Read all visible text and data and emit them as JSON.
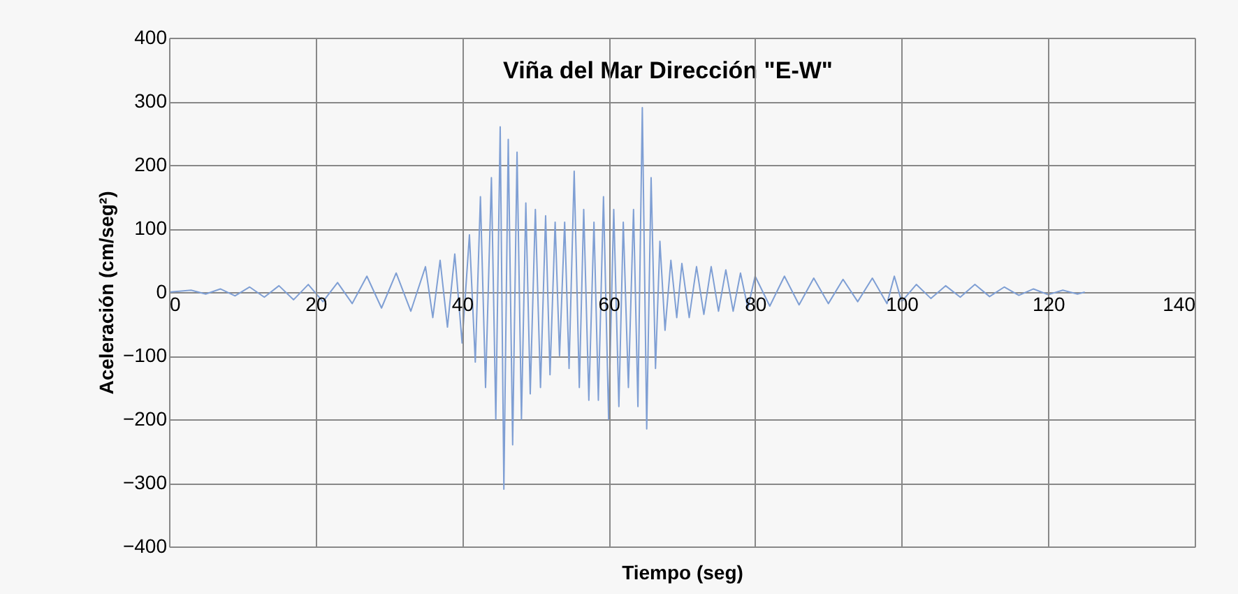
{
  "chart_data": {
    "type": "line",
    "title": "Viña del Mar Dirección \"E-W\"",
    "xlabel": "Tiempo (seg)",
    "ylabel": "Aceleración (cm/seg²)",
    "x": [
      0,
      3,
      5,
      7,
      9,
      11,
      13,
      15,
      17,
      19,
      21,
      23,
      25,
      27,
      29,
      31,
      33,
      35,
      36,
      37,
      38,
      39,
      40,
      41,
      41.8,
      42.5,
      43.2,
      44,
      44.6,
      45.2,
      45.7,
      46.3,
      46.9,
      47.5,
      48.1,
      48.7,
      49.3,
      50,
      50.7,
      51.4,
      52,
      52.7,
      53.3,
      54,
      54.6,
      55.3,
      56,
      56.6,
      57.3,
      58,
      58.6,
      59.3,
      60,
      60.7,
      61.4,
      62,
      62.7,
      63.4,
      64,
      64.6,
      65.2,
      65.8,
      66.4,
      67,
      67.7,
      68.5,
      69.3,
      70,
      71,
      72,
      73,
      74,
      75,
      76,
      77,
      78,
      79,
      80,
      82,
      84,
      86,
      88,
      90,
      92,
      94,
      96,
      98,
      99,
      100,
      102,
      104,
      106,
      108,
      110,
      112,
      114,
      116,
      118,
      120,
      122,
      124,
      125
    ],
    "series": [
      {
        "color": "#7f9fd4",
        "values": [
          0,
          3,
          -3,
          5,
          -6,
          8,
          -8,
          10,
          -12,
          12,
          -15,
          15,
          -18,
          25,
          -25,
          30,
          -30,
          40,
          -40,
          50,
          -55,
          60,
          -80,
          90,
          -110,
          150,
          -150,
          180,
          -200,
          260,
          -310,
          240,
          -240,
          220,
          -200,
          140,
          -160,
          130,
          -150,
          120,
          -130,
          110,
          -100,
          110,
          -120,
          190,
          -150,
          130,
          -170,
          110,
          -170,
          150,
          -200,
          130,
          -180,
          110,
          -150,
          130,
          -180,
          290,
          -215,
          180,
          -120,
          80,
          -60,
          50,
          -40,
          45,
          -40,
          40,
          -35,
          40,
          -30,
          35,
          -30,
          30,
          -25,
          25,
          -22,
          25,
          -20,
          22,
          -18,
          20,
          -15,
          22,
          -18,
          25,
          -15,
          12,
          -10,
          10,
          -8,
          12,
          -7,
          8,
          -5,
          5,
          -4,
          3,
          -3,
          0
        ]
      }
    ],
    "xlim": [
      0,
      140
    ],
    "xticks": [
      0,
      20,
      40,
      60,
      80,
      100,
      120,
      140
    ],
    "ylim": [
      -400,
      400
    ],
    "yticks": [
      -400,
      -300,
      -200,
      -100,
      0,
      100,
      200,
      300,
      400
    ],
    "grid": true,
    "marker": "none",
    "line_style": "solid"
  }
}
